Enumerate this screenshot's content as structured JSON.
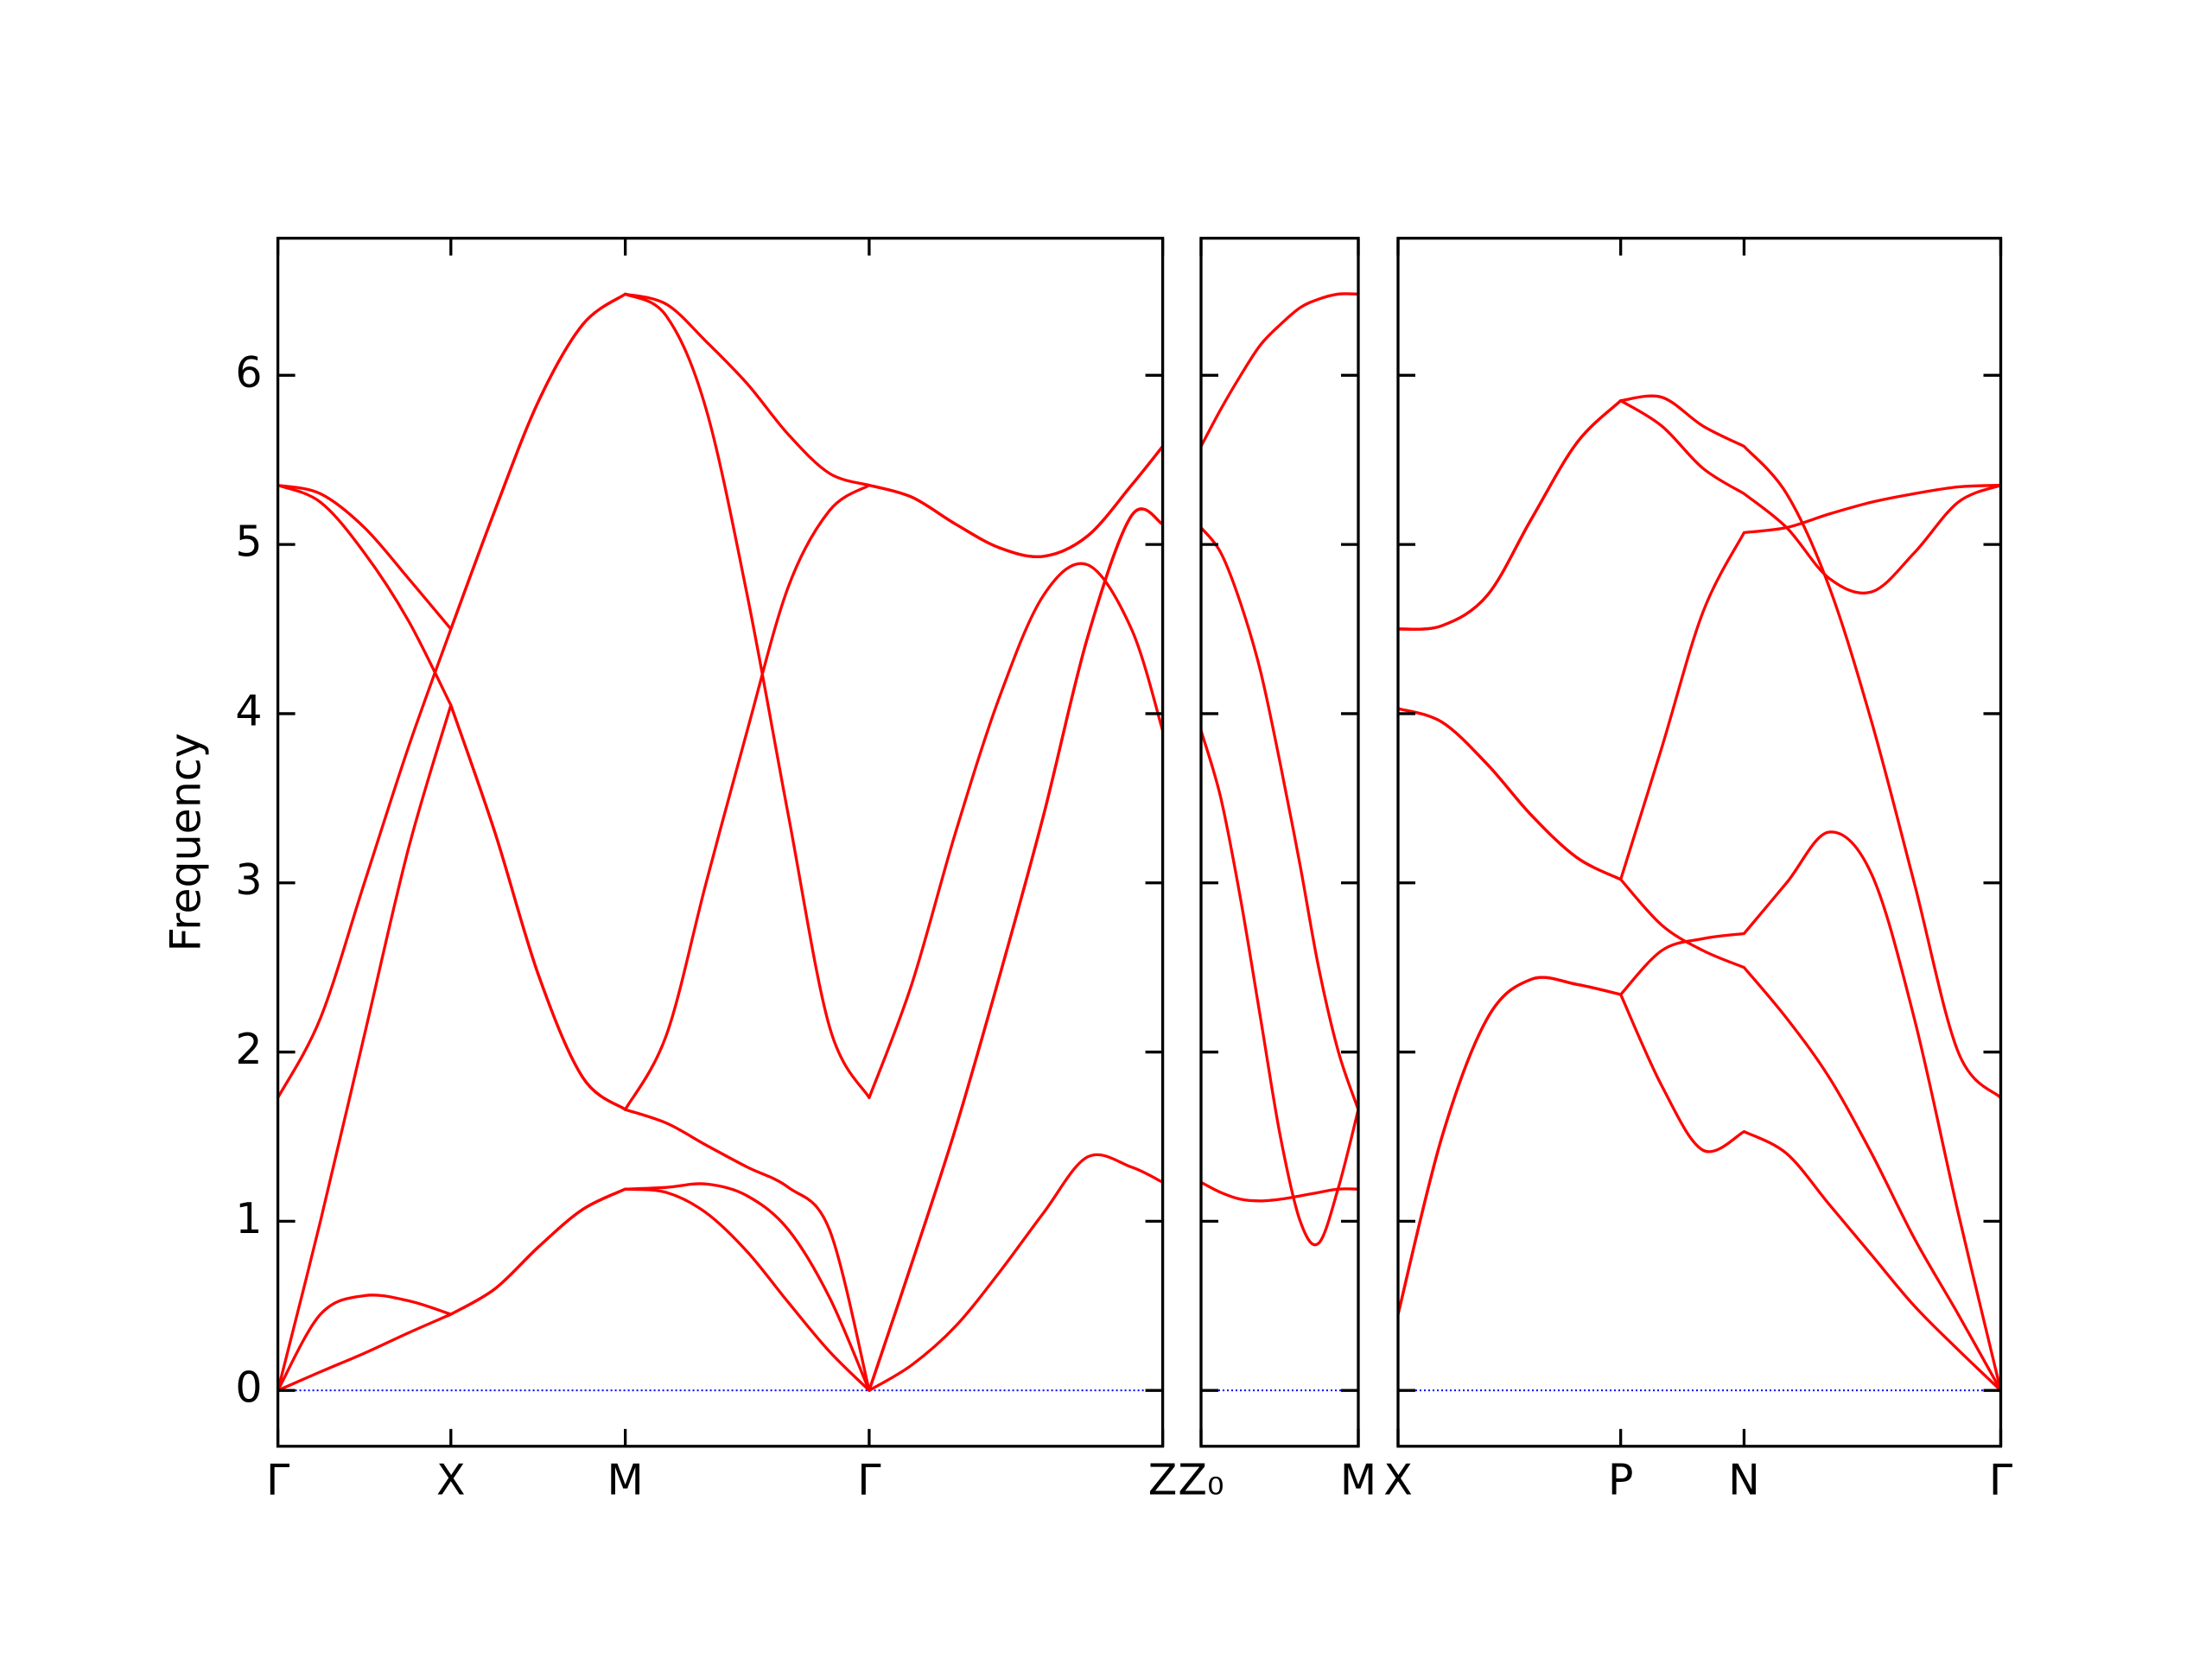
{
  "chart_data": [
    {
      "type": "line",
      "ylabel": "Frequency",
      "show_ytick_labels": true,
      "x": [
        0,
        0.3,
        0.61,
        0.92,
        1.22,
        1.53,
        1.84,
        2.15,
        2.45,
        2.74,
        3.02,
        3.31,
        3.6,
        3.89,
        4.17,
        4.47,
        4.78,
        5.09,
        5.4,
        5.71,
        6.02,
        6.24
      ],
      "xlim": [
        0,
        6.24
      ],
      "xticks": [
        {
          "value": 0,
          "label": "Γ"
        },
        {
          "value": 1.22,
          "label": "X"
        },
        {
          "value": 2.45,
          "label": "M"
        },
        {
          "value": 4.17,
          "label": "Γ"
        },
        {
          "value": 6.24,
          "label": "Z"
        }
      ],
      "ylim": [
        -0.33,
        6.81
      ],
      "yticks": [
        0,
        1,
        2,
        3,
        4,
        5,
        6
      ],
      "hline": 0,
      "hline_color": "#0000ff",
      "series": [
        {
          "color": "#ff0000",
          "values": [
            0,
            0.11,
            0.22,
            0.34,
            0.45,
            0.6,
            0.85,
            1.07,
            1.19,
            1.17,
            1.05,
            0.82,
            0.52,
            0.23,
            0,
            0.15,
            0.38,
            0.7,
            1.05,
            1.38,
            1.32,
            1.23
          ]
        },
        {
          "color": "#ff0000",
          "values": [
            0,
            0.45,
            0.56,
            0.53,
            0.45,
            0.6,
            0.85,
            1.07,
            1.19,
            1.2,
            1.22,
            1.15,
            0.95,
            0.55,
            0,
            0.75,
            1.55,
            2.45,
            3.4,
            4.45,
            5.17,
            5.12
          ]
        },
        {
          "color": "#ff0000",
          "values": [
            1.73,
            2.2,
            3.0,
            3.8,
            4.5,
            5.2,
            5.85,
            6.3,
            6.48,
            6.42,
            6.2,
            5.95,
            5.65,
            5.42,
            5.35,
            5.28,
            5.12,
            4.98,
            4.93,
            5.05,
            5.35,
            5.58
          ]
        },
        {
          "color": "#ff0000",
          "values": [
            0,
            1.0,
            2.1,
            3.2,
            4.05,
            3.3,
            2.45,
            1.85,
            1.66,
            2.1,
            3.0,
            3.9,
            4.75,
            5.2,
            5.35,
            5.28,
            5.12,
            4.98,
            4.93,
            5.05,
            5.35,
            5.58
          ]
        },
        {
          "color": "#ff0000",
          "values": [
            5.35,
            5.3,
            5.1,
            4.8,
            4.5,
            5.2,
            5.85,
            6.3,
            6.48,
            6.35,
            5.8,
            4.7,
            3.4,
            2.15,
            1.73,
            2.4,
            3.3,
            4.1,
            4.7,
            4.88,
            4.5,
            3.9
          ]
        },
        {
          "color": "#ff0000",
          "values": [
            5.35,
            5.25,
            4.95,
            4.55,
            4.05,
            3.3,
            2.45,
            1.85,
            1.66,
            1.58,
            1.45,
            1.32,
            1.2,
            0.95,
            0,
            0.75,
            1.55,
            2.45,
            3.4,
            4.45,
            5.17,
            5.12
          ]
        }
      ]
    },
    {
      "type": "line",
      "show_ytick_labels": false,
      "x": [
        0,
        0.14,
        0.28,
        0.42,
        0.56,
        0.7,
        0.83,
        0.97,
        1.11
      ],
      "xlim": [
        0,
        1.11
      ],
      "xticks": [
        {
          "value": 0,
          "label": "Z₀"
        },
        {
          "value": 1.11,
          "label": "M"
        }
      ],
      "ylim": [
        -0.33,
        6.81
      ],
      "yticks": [
        0,
        1,
        2,
        3,
        4,
        5,
        6
      ],
      "hline": 0,
      "hline_color": "#0000ff",
      "series": [
        {
          "color": "#ff0000",
          "values": [
            5.58,
            5.8,
            6.0,
            6.18,
            6.3,
            6.4,
            6.45,
            6.48,
            6.48
          ]
        },
        {
          "color": "#ff0000",
          "values": [
            5.1,
            4.95,
            4.65,
            4.25,
            3.7,
            3.1,
            2.5,
            2.0,
            1.66
          ]
        },
        {
          "color": "#ff0000",
          "values": [
            3.9,
            3.5,
            2.9,
            2.2,
            1.5,
            1.0,
            0.87,
            1.2,
            1.66
          ]
        },
        {
          "color": "#ff0000",
          "values": [
            1.23,
            1.17,
            1.13,
            1.12,
            1.13,
            1.15,
            1.17,
            1.19,
            1.19
          ]
        }
      ]
    },
    {
      "type": "line",
      "show_ytick_labels": false,
      "x": [
        0,
        0.31,
        0.63,
        0.94,
        1.26,
        1.57,
        1.86,
        2.15,
        2.44,
        2.74,
        3.04,
        3.34,
        3.64,
        3.95,
        4.25
      ],
      "xlim": [
        0,
        4.25
      ],
      "xticks": [
        {
          "value": 0,
          "label": "X"
        },
        {
          "value": 1.57,
          "label": "P"
        },
        {
          "value": 2.44,
          "label": "N"
        },
        {
          "value": 4.25,
          "label": "Γ"
        }
      ],
      "ylim": [
        -0.33,
        6.81
      ],
      "yticks": [
        0,
        1,
        2,
        3,
        4,
        5,
        6
      ],
      "hline": 0,
      "hline_color": "#0000ff",
      "series": [
        {
          "color": "#ff0000",
          "values": [
            4.5,
            4.52,
            4.7,
            5.15,
            5.6,
            5.85,
            5.7,
            5.45,
            5.3,
            5.1,
            4.8,
            4.72,
            4.95,
            5.25,
            5.35
          ]
        },
        {
          "color": "#ff0000",
          "values": [
            4.5,
            4.52,
            4.7,
            5.15,
            5.6,
            5.85,
            5.87,
            5.7,
            5.58,
            5.3,
            4.75,
            3.95,
            3.0,
            2.0,
            1.73
          ]
        },
        {
          "color": "#ff0000",
          "values": [
            4.03,
            3.95,
            3.7,
            3.4,
            3.15,
            3.02,
            3.8,
            4.6,
            5.07,
            5.1,
            5.18,
            5.25,
            5.3,
            5.34,
            5.35
          ]
        },
        {
          "color": "#ff0000",
          "values": [
            4.03,
            3.95,
            3.7,
            3.4,
            3.15,
            3.02,
            2.75,
            2.6,
            2.5,
            2.2,
            1.85,
            1.4,
            0.9,
            0.45,
            0
          ]
        },
        {
          "color": "#ff0000",
          "values": [
            0.45,
            1.5,
            2.2,
            2.43,
            2.4,
            2.34,
            2.6,
            2.67,
            2.7,
            3.0,
            3.3,
            3.05,
            2.2,
            1.05,
            0
          ]
        },
        {
          "color": "#ff0000",
          "values": [
            0.45,
            1.5,
            2.2,
            2.43,
            2.4,
            2.34,
            1.8,
            1.42,
            1.53,
            1.4,
            1.1,
            0.8,
            0.5,
            0.24,
            0
          ]
        }
      ]
    }
  ]
}
